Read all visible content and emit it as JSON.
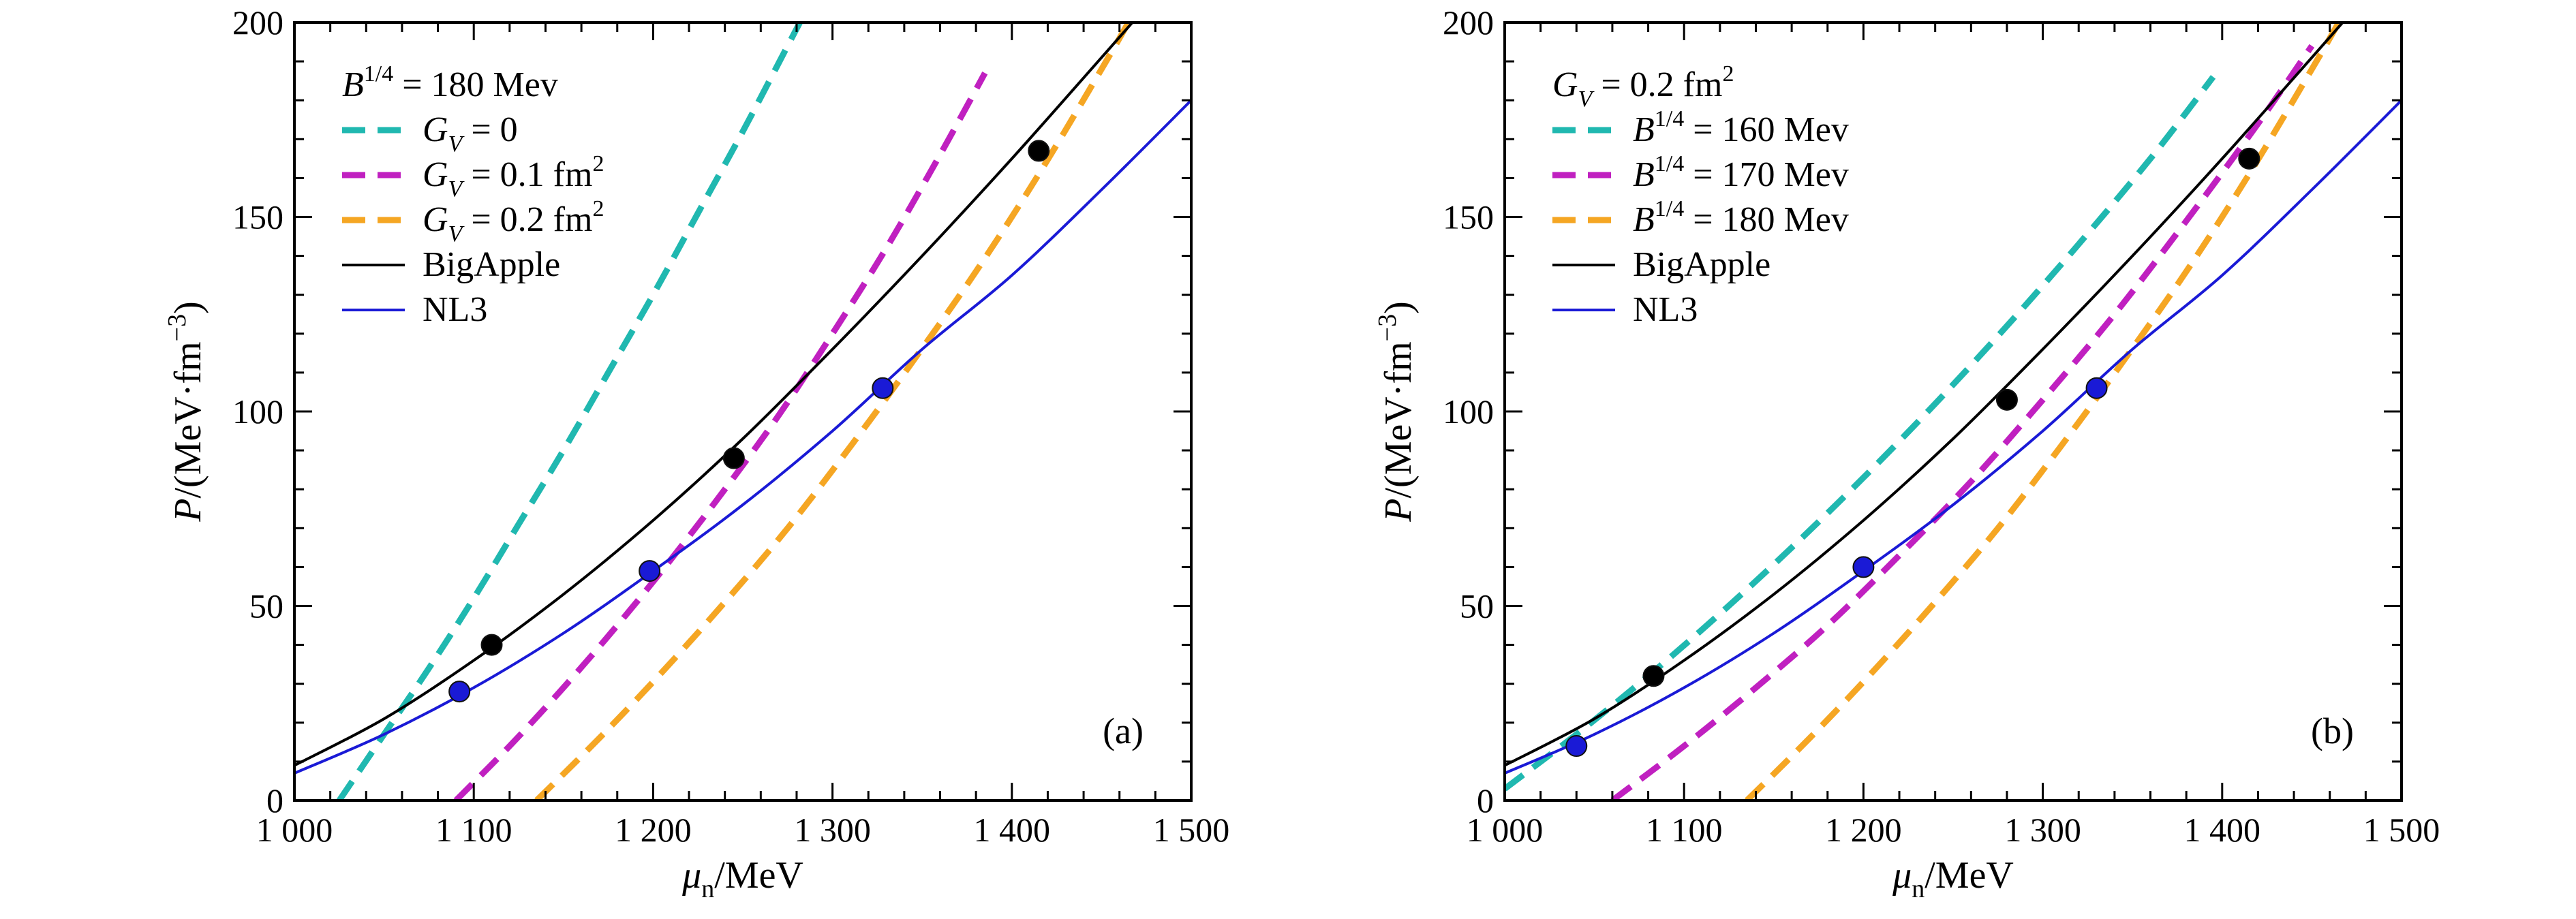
{
  "chart_data": [
    {
      "type": "line",
      "panel_label": "(a)",
      "xlabel": {
        "sym": "μ",
        "sub": "n",
        "unit": "/MeV"
      },
      "ylabel": {
        "sym": "P",
        "unit": "/(MeV·fm",
        "sup": "−3",
        "close": ")"
      },
      "xlim": [
        1000,
        1500
      ],
      "ylim": [
        0,
        200
      ],
      "xticks": [
        {
          "value": 1000,
          "label": "1 000"
        },
        {
          "value": 1100,
          "label": "1 100"
        },
        {
          "value": 1200,
          "label": "1 200"
        },
        {
          "value": 1300,
          "label": "1 300"
        },
        {
          "value": 1400,
          "label": "1 400"
        },
        {
          "value": 1500,
          "label": "1 500"
        }
      ],
      "yticks": [
        {
          "value": 0,
          "label": "0"
        },
        {
          "value": 50,
          "label": "50"
        },
        {
          "value": 100,
          "label": "100"
        },
        {
          "value": 150,
          "label": "150"
        },
        {
          "value": 200,
          "label": "200"
        }
      ],
      "legend_header": {
        "sym": "B",
        "sup": "1/4",
        "rest": " = 180 Mev"
      },
      "legend_position": "top-left",
      "series": [
        {
          "key": "gv0",
          "legend": {
            "sym": "G",
            "sub": "V",
            "rest": " = 0",
            "sup": ""
          },
          "color": "#20b8b0",
          "dash": true,
          "x": [
            1025,
            1050,
            1075,
            1100,
            1125,
            1150,
            1175,
            1200,
            1225,
            1250,
            1275,
            1300
          ],
          "y": [
            0,
            17,
            34,
            52,
            71,
            90,
            110,
            130,
            151,
            172,
            194,
            216
          ]
        },
        {
          "key": "gv01",
          "legend": {
            "sym": "G",
            "sub": "V",
            "rest": " = 0.1 fm",
            "sup": "2"
          },
          "color": "#c020c0",
          "dash": true,
          "x": [
            1090,
            1120,
            1150,
            1180,
            1210,
            1240,
            1270,
            1300,
            1330,
            1360,
            1385
          ],
          "y": [
            0,
            14,
            29,
            45,
            62,
            80,
            99,
            120,
            142,
            166,
            187
          ]
        },
        {
          "key": "gv02",
          "legend": {
            "sym": "G",
            "sub": "V",
            "rest": " = 0.2 fm",
            "sup": "2"
          },
          "color": "#f5a623",
          "dash": true,
          "x": [
            1135,
            1170,
            1205,
            1240,
            1275,
            1310,
            1345,
            1380,
            1415,
            1450,
            1465
          ],
          "y": [
            0,
            16,
            33,
            51,
            70,
            91,
            113,
            136,
            161,
            188,
            200
          ]
        },
        {
          "key": "bigapple",
          "legend": {
            "sym": "",
            "sub": "",
            "rest": "BigApple",
            "sup": ""
          },
          "color": "#000000",
          "dash": false,
          "x": [
            1000,
            1050,
            1100,
            1150,
            1200,
            1250,
            1300,
            1350,
            1400,
            1450,
            1490
          ],
          "y": [
            9,
            21,
            36,
            53,
            72,
            93,
            116,
            140,
            165,
            191,
            212
          ]
        },
        {
          "key": "nl3",
          "legend": {
            "sym": "",
            "sub": "",
            "rest": "NL3",
            "sup": ""
          },
          "color": "#1a1ad6",
          "dash": false,
          "x": [
            1000,
            1050,
            1100,
            1150,
            1200,
            1250,
            1300,
            1350,
            1400,
            1450,
            1500
          ],
          "y": [
            7,
            17,
            29,
            43,
            59,
            76,
            95,
            116,
            135,
            157,
            180
          ]
        }
      ],
      "markers": [
        {
          "x": 1110,
          "y": 40,
          "color": "#000000"
        },
        {
          "x": 1245,
          "y": 88,
          "color": "#000000"
        },
        {
          "x": 1415,
          "y": 167,
          "color": "#000000"
        },
        {
          "x": 1092,
          "y": 28,
          "color": "#1a1ad6"
        },
        {
          "x": 1198,
          "y": 59,
          "color": "#1a1ad6"
        },
        {
          "x": 1328,
          "y": 106,
          "color": "#1a1ad6"
        }
      ]
    },
    {
      "type": "line",
      "panel_label": "(b)",
      "xlabel": {
        "sym": "μ",
        "sub": "n",
        "unit": "/MeV"
      },
      "ylabel": {
        "sym": "P",
        "unit": "/(MeV·fm",
        "sup": "−3",
        "close": ")"
      },
      "xlim": [
        1000,
        1500
      ],
      "ylim": [
        0,
        200
      ],
      "xticks": [
        {
          "value": 1000,
          "label": "1 000"
        },
        {
          "value": 1100,
          "label": "1 100"
        },
        {
          "value": 1200,
          "label": "1 200"
        },
        {
          "value": 1300,
          "label": "1 300"
        },
        {
          "value": 1400,
          "label": "1 400"
        },
        {
          "value": 1500,
          "label": "1 500"
        }
      ],
      "yticks": [
        {
          "value": 0,
          "label": "0"
        },
        {
          "value": 50,
          "label": "50"
        },
        {
          "value": 100,
          "label": "100"
        },
        {
          "value": 150,
          "label": "150"
        },
        {
          "value": 200,
          "label": "200"
        }
      ],
      "legend_header": {
        "sym": "G",
        "sub": "V",
        "rest": " = 0.2 fm",
        "sup": "2"
      },
      "legend_position": "top-left",
      "series": [
        {
          "key": "b160",
          "legend": {
            "sym": "B",
            "sup": "1/4",
            "rest": " = 160 Mev",
            "sub": ""
          },
          "color": "#20b8b0",
          "dash": true,
          "x": [
            1000,
            1040,
            1080,
            1120,
            1160,
            1200,
            1240,
            1280,
            1320,
            1360,
            1395
          ],
          "y": [
            3,
            17,
            32,
            48,
            65,
            83,
            102,
            122,
            143,
            165,
            186
          ]
        },
        {
          "key": "b170",
          "legend": {
            "sym": "B",
            "sup": "1/4",
            "rest": " = 170 Mev",
            "sub": ""
          },
          "color": "#c020c0",
          "dash": true,
          "x": [
            1060,
            1100,
            1140,
            1180,
            1220,
            1260,
            1300,
            1340,
            1380,
            1420,
            1450
          ],
          "y": [
            0,
            14,
            29,
            45,
            63,
            82,
            103,
            125,
            149,
            174,
            194
          ]
        },
        {
          "key": "b180",
          "legend": {
            "sym": "B",
            "sup": "1/4",
            "rest": " = 180 Mev",
            "sub": ""
          },
          "color": "#f5a623",
          "dash": true,
          "x": [
            1135,
            1170,
            1205,
            1240,
            1275,
            1310,
            1345,
            1380,
            1415,
            1450,
            1465
          ],
          "y": [
            0,
            16,
            33,
            51,
            70,
            91,
            113,
            136,
            161,
            188,
            200
          ]
        },
        {
          "key": "bigapple",
          "legend": {
            "sym": "",
            "sup": "",
            "rest": "BigApple",
            "sub": ""
          },
          "color": "#000000",
          "dash": false,
          "x": [
            1000,
            1050,
            1100,
            1150,
            1200,
            1250,
            1300,
            1350,
            1400,
            1450,
            1490
          ],
          "y": [
            9,
            21,
            36,
            53,
            72,
            93,
            116,
            140,
            165,
            191,
            212
          ]
        },
        {
          "key": "nl3",
          "legend": {
            "sym": "",
            "sup": "",
            "rest": "NL3",
            "sub": ""
          },
          "color": "#1a1ad6",
          "dash": false,
          "x": [
            1000,
            1050,
            1100,
            1150,
            1200,
            1250,
            1300,
            1350,
            1400,
            1450,
            1500
          ],
          "y": [
            7,
            17,
            29,
            43,
            59,
            76,
            95,
            116,
            135,
            157,
            180
          ]
        }
      ],
      "markers": [
        {
          "x": 1083,
          "y": 32,
          "color": "#000000"
        },
        {
          "x": 1280,
          "y": 103,
          "color": "#000000"
        },
        {
          "x": 1415,
          "y": 165,
          "color": "#000000"
        },
        {
          "x": 1040,
          "y": 14,
          "color": "#1a1ad6"
        },
        {
          "x": 1200,
          "y": 60,
          "color": "#1a1ad6"
        },
        {
          "x": 1330,
          "y": 106,
          "color": "#1a1ad6"
        }
      ]
    }
  ]
}
